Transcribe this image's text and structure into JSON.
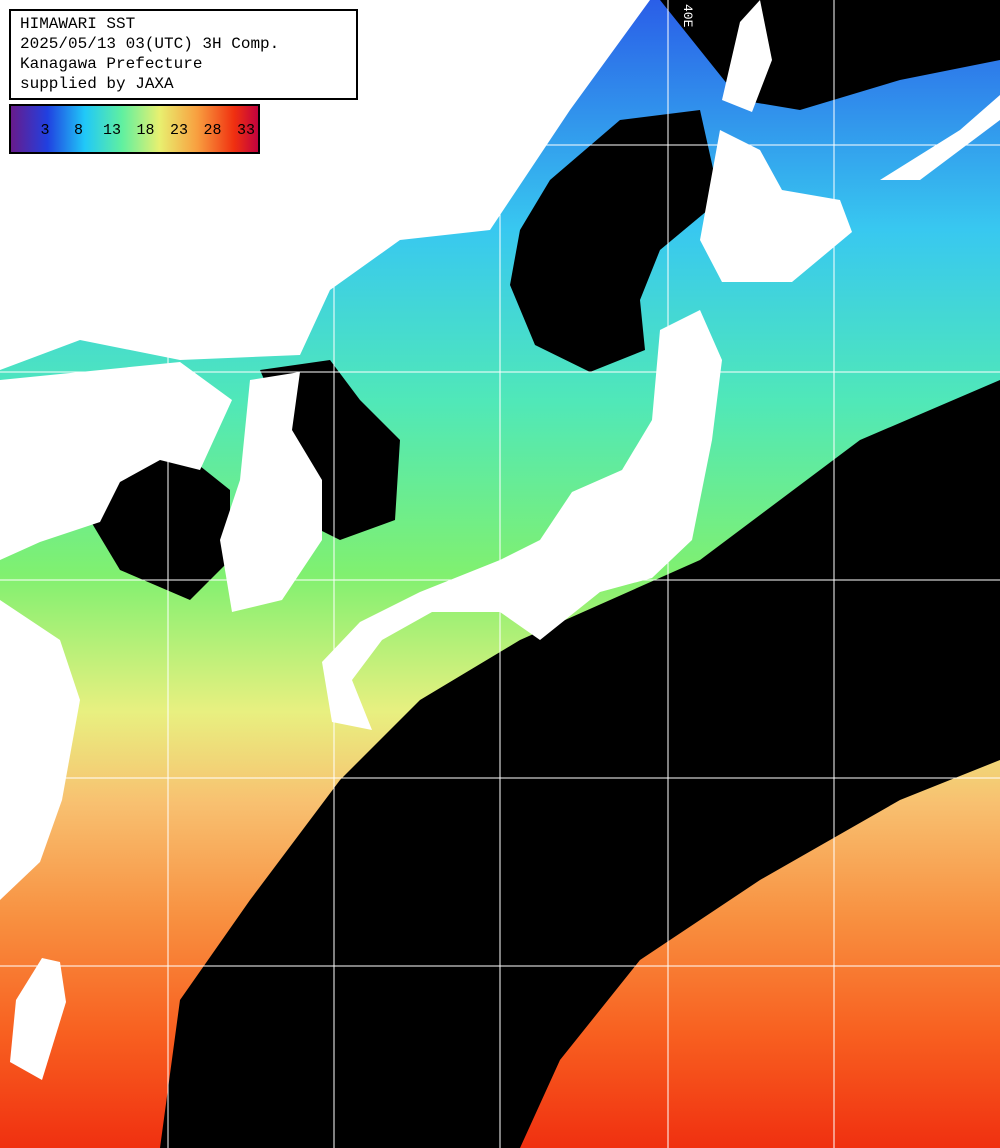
{
  "header": {
    "lines": [
      "HIMAWARI SST",
      "2025/05/13 03(UTC) 3H Comp.",
      "Kanagawa Prefecture",
      "supplied by JAXA"
    ]
  },
  "colorbar": {
    "labels": [
      3,
      8,
      13,
      18,
      23,
      28,
      33
    ]
  },
  "grid_label": "40E"
}
